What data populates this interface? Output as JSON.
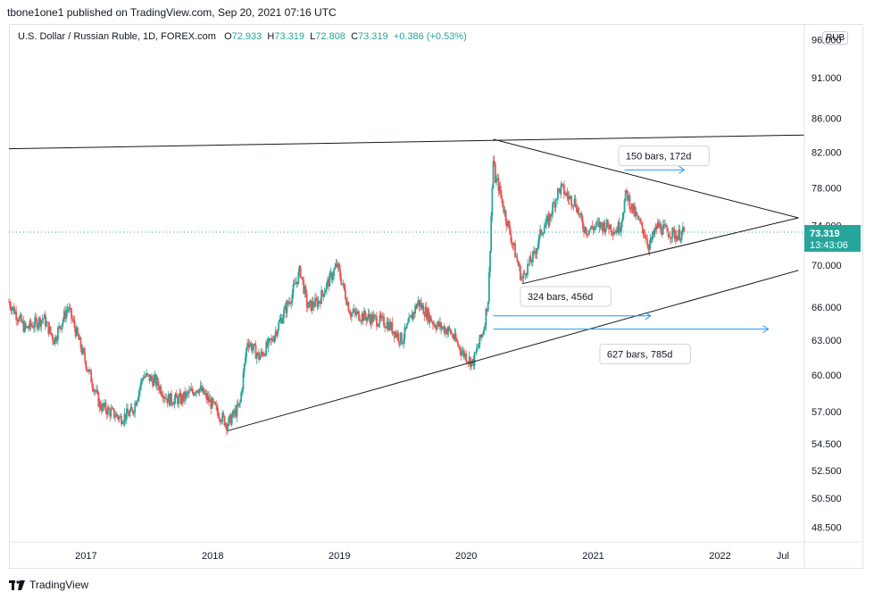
{
  "header": {
    "published_line": "tbone1one1 published on TradingView.com, Sep 20, 2021 07:16 UTC"
  },
  "legend": {
    "symbol": "U.S. Dollar / Russian Ruble, 1D, FOREX.com",
    "o_label": "O",
    "o_value": "72.933",
    "h_label": "H",
    "h_value": "73.319",
    "l_label": "L",
    "l_value": "72.808",
    "c_label": "C",
    "c_value": "73.319",
    "change": "+0.386 (+0.53%)"
  },
  "unit_badge": "RUB",
  "price_label": {
    "price": "73.319",
    "countdown": "13:43:06"
  },
  "footer": {
    "brand": "TradingView"
  },
  "colors": {
    "up": "#26a69a",
    "down": "#ef5350",
    "accent": "#2962ff",
    "arrow": "#2196f3",
    "line": "#131722"
  },
  "annotations": [
    {
      "text": "150 bars, 172d"
    },
    {
      "text": "324 bars, 456d"
    },
    {
      "text": "627 bars, 785d"
    }
  ],
  "chart_data": {
    "type": "candlestick",
    "y_ticks": [
      "96.000",
      "91.000",
      "86.000",
      "82.000",
      "78.000",
      "74.000",
      "70.000",
      "66.000",
      "63.000",
      "60.000",
      "57.000",
      "54.500",
      "52.500",
      "50.500",
      "48.500"
    ],
    "ylim": [
      47.5,
      98
    ],
    "y_scale": "log",
    "x_ticks": [
      "2017",
      "2018",
      "2019",
      "2020",
      "2021",
      "2022",
      "Jul"
    ],
    "x_tick_dates": [
      "2017-01-01",
      "2018-01-01",
      "2019-01-01",
      "2020-01-01",
      "2021-01-01",
      "2022-01-01",
      "2022-07-01"
    ],
    "xlim": [
      "2016-05-24",
      "2022-09-01"
    ],
    "last_price": 73.319,
    "anchors": [
      [
        "2016-05-24",
        66.5
      ],
      [
        "2016-07-10",
        64.0
      ],
      [
        "2016-09-01",
        65.0
      ],
      [
        "2016-10-01",
        63.0
      ],
      [
        "2016-11-10",
        66.0
      ],
      [
        "2017-01-01",
        61.0
      ],
      [
        "2017-02-10",
        57.5
      ],
      [
        "2017-04-10",
        56.5
      ],
      [
        "2017-05-15",
        57.0
      ],
      [
        "2017-06-15",
        60.0
      ],
      [
        "2017-07-20",
        59.5
      ],
      [
        "2017-08-25",
        58.0
      ],
      [
        "2017-10-01",
        58.0
      ],
      [
        "2017-11-20",
        59.0
      ],
      [
        "2018-01-01",
        57.5
      ],
      [
        "2018-02-12",
        56.0
      ],
      [
        "2018-03-20",
        57.5
      ],
      [
        "2018-04-11",
        63.0
      ],
      [
        "2018-05-15",
        61.5
      ],
      [
        "2018-06-20",
        63.0
      ],
      [
        "2018-08-15",
        67.0
      ],
      [
        "2018-09-10",
        69.5
      ],
      [
        "2018-10-01",
        66.0
      ],
      [
        "2018-11-01",
        66.5
      ],
      [
        "2018-12-25",
        70.0
      ],
      [
        "2019-02-01",
        65.5
      ],
      [
        "2019-04-01",
        65.0
      ],
      [
        "2019-05-20",
        64.5
      ],
      [
        "2019-06-30",
        63.0
      ],
      [
        "2019-08-15",
        66.5
      ],
      [
        "2019-10-01",
        64.5
      ],
      [
        "2019-11-15",
        63.8
      ],
      [
        "2019-12-20",
        62.0
      ],
      [
        "2020-01-20",
        61.0
      ],
      [
        "2020-02-20",
        64.0
      ],
      [
        "2020-03-05",
        67.0
      ],
      [
        "2020-03-19",
        81.0
      ],
      [
        "2020-03-25",
        79.0
      ],
      [
        "2020-04-01",
        78.5
      ],
      [
        "2020-04-20",
        75.5
      ],
      [
        "2020-05-15",
        72.0
      ],
      [
        "2020-06-10",
        68.5
      ],
      [
        "2020-06-20",
        69.5
      ],
      [
        "2020-07-15",
        71.0
      ],
      [
        "2020-08-05",
        73.5
      ],
      [
        "2020-08-25",
        74.5
      ],
      [
        "2020-09-20",
        77.5
      ],
      [
        "2020-10-01",
        78.0
      ],
      [
        "2020-10-20",
        77.0
      ],
      [
        "2020-11-10",
        76.5
      ],
      [
        "2020-12-01",
        74.0
      ],
      [
        "2020-12-15",
        73.5
      ],
      [
        "2021-01-15",
        74.0
      ],
      [
        "2021-02-15",
        74.0
      ],
      [
        "2021-03-05",
        73.5
      ],
      [
        "2021-03-20",
        74.0
      ],
      [
        "2021-04-06",
        77.5
      ],
      [
        "2021-04-20",
        76.0
      ],
      [
        "2021-05-10",
        74.5
      ],
      [
        "2021-06-01",
        73.0
      ],
      [
        "2021-06-10",
        71.8
      ],
      [
        "2021-07-05",
        74.0
      ],
      [
        "2021-07-25",
        73.5
      ],
      [
        "2021-08-15",
        73.2
      ],
      [
        "2021-09-01",
        73.0
      ],
      [
        "2021-09-20",
        73.319
      ]
    ],
    "trendlines": [
      {
        "from": [
          "2016-05-24",
          82.4
        ],
        "to": [
          "2022-09-01",
          84.0
        ]
      },
      {
        "from": [
          "2020-03-19",
          83.5
        ],
        "to": [
          "2022-08-15",
          74.8
        ]
      },
      {
        "from": [
          "2020-06-10",
          68.2
        ],
        "to": [
          "2022-08-15",
          74.8
        ]
      },
      {
        "from": [
          "2018-02-12",
          55.5
        ],
        "to": [
          "2022-08-15",
          69.5
        ]
      }
    ],
    "date_ranges": [
      {
        "from": [
          "2021-04-01",
          80.0
        ],
        "to": [
          "2021-09-20",
          80.0
        ]
      },
      {
        "from": [
          "2020-03-19",
          65.2
        ],
        "to": [
          "2021-06-15",
          65.2
        ]
      },
      {
        "from": [
          "2020-03-19",
          64.0
        ],
        "to": [
          "2022-05-20",
          64.0
        ]
      }
    ]
  }
}
